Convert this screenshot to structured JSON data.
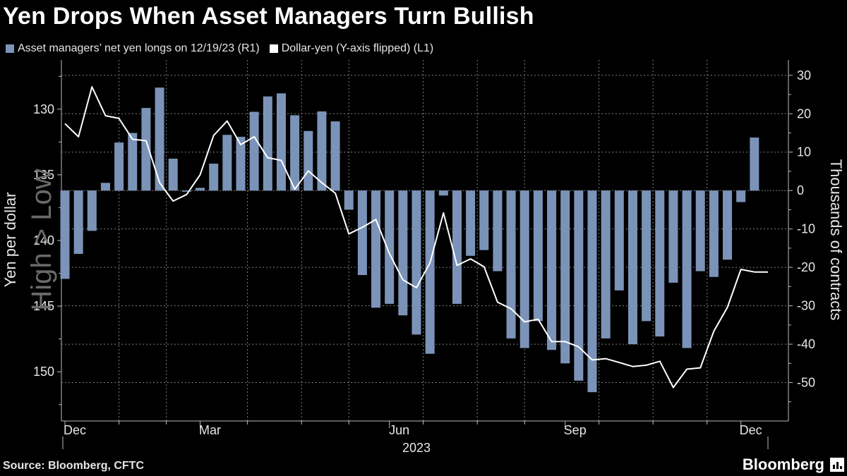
{
  "title": "Yen Drops When Asset Managers Turn Bullish",
  "legend": {
    "bars_label": "Asset managers’ net yen longs on 12/19/23 (R1)",
    "line_label": "Dollar-yen (Y-axis flipped) (L1)"
  },
  "colors": {
    "bars": "#7b93b8",
    "line": "#ffffff",
    "grid": "#808080",
    "axis_text": "#e6e6e6",
    "watermark": "#6a6a6a"
  },
  "source": "Source: Bloomberg, CFTC",
  "brand": "Bloomberg",
  "chart_data": {
    "type": "bar+line",
    "title": "Yen Drops When Asset Managers Turn Bullish",
    "x": [
      0,
      1,
      2,
      3,
      4,
      5,
      6,
      7,
      8,
      9,
      10,
      11,
      12,
      13,
      14,
      15,
      16,
      17,
      18,
      19,
      20,
      21,
      22,
      23,
      24,
      25,
      26,
      27,
      28,
      29,
      30,
      31,
      32,
      33,
      34,
      35,
      36,
      37,
      38,
      39,
      40,
      41,
      42,
      43,
      44,
      45,
      46,
      47,
      48,
      49,
      50,
      51,
      52
    ],
    "x_ticks": [
      {
        "x": 0,
        "label": "Dec"
      },
      {
        "x": 10,
        "label": "Mar"
      },
      {
        "x": 24,
        "label": "Jun"
      },
      {
        "x": 37,
        "label": "Sep"
      },
      {
        "x": 50,
        "label": "Dec"
      }
    ],
    "x_minor_ticks": [
      4,
      7.5,
      13.5,
      17.5,
      21,
      26.5,
      30.5,
      34,
      39.5,
      43.5,
      47.5
    ],
    "x_year_label": "2023",
    "series": [
      {
        "name": "Asset managers’ net yen longs on 12/19/23 (R1)",
        "type": "bar",
        "axis": "right",
        "x": [
          0,
          1,
          2,
          3,
          4,
          5,
          6,
          7,
          8,
          9,
          10,
          11,
          12,
          13,
          14,
          15,
          16,
          17,
          18,
          19,
          20,
          21,
          22,
          23,
          24,
          25,
          26,
          27,
          28,
          29,
          30,
          31,
          32,
          33,
          34,
          35,
          36,
          37,
          38,
          39,
          40,
          41,
          42,
          43,
          44,
          45,
          46,
          47,
          48,
          49,
          50,
          51,
          52
        ],
        "values": [
          -23,
          -16.5,
          -10.5,
          2,
          12.5,
          15,
          21.5,
          26.8,
          8.3,
          -0.3,
          0.7,
          7,
          14.5,
          14,
          20.5,
          24.5,
          25.3,
          19.6,
          15.5,
          20.6,
          18,
          -5,
          -22,
          -30.5,
          -29.5,
          -32.5,
          -37.5,
          -42.5,
          -1.3,
          -29.5,
          -17,
          -15.5,
          -21,
          -38.5,
          -41,
          -34,
          -41.5,
          -45,
          -49.5,
          -52.5,
          -38.5,
          -26,
          -40,
          -34,
          -38,
          -24,
          -41,
          -21,
          -22.5,
          -18,
          -3,
          13.8,
          null
        ]
      },
      {
        "name": "Dollar-yen (Y-axis flipped) (L1)",
        "type": "line",
        "axis": "left",
        "x": [
          0,
          1,
          2,
          3,
          4,
          5,
          6,
          7,
          8,
          9,
          10,
          11,
          12,
          13,
          14,
          15,
          16,
          17,
          18,
          19,
          20,
          21,
          22,
          23,
          24,
          25,
          26,
          27,
          28,
          29,
          30,
          31,
          32,
          33,
          34,
          35,
          36,
          37,
          38,
          39,
          40,
          41,
          42,
          43,
          44,
          45,
          46,
          47,
          48,
          49,
          50,
          51,
          52
        ],
        "values": [
          131.1,
          132.1,
          128.3,
          130.5,
          130.7,
          132.3,
          132.4,
          135.6,
          137.0,
          136.5,
          135.0,
          132.0,
          130.9,
          132.7,
          132.1,
          133.7,
          133.9,
          136.1,
          134.7,
          135.6,
          136.4,
          139.5,
          139.0,
          138.4,
          141.0,
          143.0,
          143.6,
          141.7,
          137.9,
          141.9,
          141.4,
          142.0,
          144.7,
          145.2,
          146.2,
          146.0,
          147.7,
          147.7,
          148.1,
          149.1,
          149.0,
          149.3,
          149.6,
          149.5,
          149.2,
          151.2,
          149.8,
          149.7,
          146.9,
          145.1,
          142.2,
          142.4,
          142.4
        ]
      }
    ],
    "left_axis": {
      "label": "Yen per dollar",
      "inverted": true,
      "range": [
        126.25,
        153.75
      ],
      "ticks": [
        130,
        135,
        140,
        145,
        150
      ],
      "watermark": "High > Low"
    },
    "right_axis": {
      "label": "Thousands of contracts",
      "range": [
        -60,
        34
      ],
      "ticks": [
        30,
        20,
        10,
        0,
        -10,
        -20,
        -30,
        -40,
        -50
      ]
    },
    "grid": true
  }
}
